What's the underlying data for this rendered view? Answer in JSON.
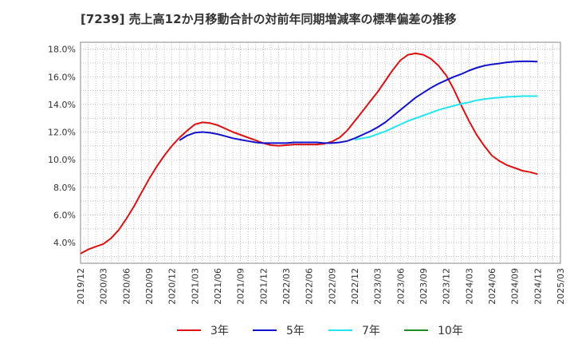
{
  "chart_data": {
    "type": "line",
    "title": "[7239]  売上高12か月移動合計の対前年同期増減率の標準偏差の推移",
    "xlabel": "",
    "ylabel": "",
    "x_ticks": [
      "2019/12",
      "2020/03",
      "2020/06",
      "2020/09",
      "2020/12",
      "2021/03",
      "2021/06",
      "2021/09",
      "2021/12",
      "2022/03",
      "2022/06",
      "2022/09",
      "2022/12",
      "2023/03",
      "2023/06",
      "2023/09",
      "2023/12",
      "2024/03",
      "2024/06",
      "2024/09",
      "2024/12",
      "2025/03"
    ],
    "y_ticks": [
      "4.0%",
      "6.0%",
      "8.0%",
      "10.0%",
      "12.0%",
      "14.0%",
      "16.0%",
      "18.0%"
    ],
    "ylim": [
      2.5,
      18.5
    ],
    "grid": true,
    "legend_position": "bottom",
    "series": [
      {
        "name": "3年",
        "color": "#dd1111",
        "x": [
          "2019/12",
          "2020/01",
          "2020/02",
          "2020/03",
          "2020/04",
          "2020/05",
          "2020/06",
          "2020/07",
          "2020/08",
          "2020/09",
          "2020/10",
          "2020/11",
          "2020/12",
          "2021/01",
          "2021/02",
          "2021/03",
          "2021/04",
          "2021/05",
          "2021/06",
          "2021/07",
          "2021/08",
          "2021/09",
          "2021/10",
          "2021/11",
          "2021/12",
          "2022/01",
          "2022/02",
          "2022/03",
          "2022/04",
          "2022/05",
          "2022/06",
          "2022/07",
          "2022/08",
          "2022/09",
          "2022/10",
          "2022/11",
          "2022/12",
          "2023/01",
          "2023/02",
          "2023/03",
          "2023/04",
          "2023/05",
          "2023/06",
          "2023/07",
          "2023/08",
          "2023/09",
          "2023/10",
          "2023/11",
          "2023/12",
          "2024/01",
          "2024/02",
          "2024/03",
          "2024/04",
          "2024/05",
          "2024/06",
          "2024/07",
          "2024/08",
          "2024/09",
          "2024/10",
          "2024/11",
          "2024/12"
        ],
        "values": [
          3.2,
          3.5,
          3.7,
          3.9,
          4.3,
          4.9,
          5.7,
          6.6,
          7.6,
          8.6,
          9.5,
          10.3,
          11.0,
          11.6,
          12.1,
          12.55,
          12.7,
          12.65,
          12.5,
          12.25,
          12.0,
          11.8,
          11.6,
          11.4,
          11.2,
          11.05,
          11.0,
          11.05,
          11.1,
          11.1,
          11.1,
          11.1,
          11.15,
          11.3,
          11.6,
          12.1,
          12.8,
          13.5,
          14.2,
          14.9,
          15.7,
          16.5,
          17.2,
          17.6,
          17.7,
          17.6,
          17.3,
          16.8,
          16.1,
          15.1,
          13.9,
          12.8,
          11.8,
          11.0,
          10.3,
          9.9,
          9.6,
          9.4,
          9.2,
          9.1,
          8.95
        ]
      },
      {
        "name": "5年",
        "color": "#1111cc",
        "x": [
          "2021/01",
          "2021/02",
          "2021/03",
          "2021/04",
          "2021/05",
          "2021/06",
          "2021/07",
          "2021/08",
          "2021/09",
          "2021/10",
          "2021/11",
          "2021/12",
          "2022/01",
          "2022/02",
          "2022/03",
          "2022/04",
          "2022/05",
          "2022/06",
          "2022/07",
          "2022/08",
          "2022/09",
          "2022/10",
          "2022/11",
          "2022/12",
          "2023/01",
          "2023/02",
          "2023/03",
          "2023/04",
          "2023/05",
          "2023/06",
          "2023/07",
          "2023/08",
          "2023/09",
          "2023/10",
          "2023/11",
          "2023/12",
          "2024/01",
          "2024/02",
          "2024/03",
          "2024/04",
          "2024/05",
          "2024/06",
          "2024/07",
          "2024/08",
          "2024/09",
          "2024/10",
          "2024/11",
          "2024/12"
        ],
        "values": [
          11.4,
          11.75,
          11.95,
          12.0,
          11.95,
          11.85,
          11.7,
          11.55,
          11.45,
          11.35,
          11.25,
          11.2,
          11.2,
          11.2,
          11.2,
          11.25,
          11.25,
          11.25,
          11.25,
          11.2,
          11.2,
          11.25,
          11.35,
          11.55,
          11.8,
          12.05,
          12.35,
          12.7,
          13.15,
          13.6,
          14.05,
          14.5,
          14.85,
          15.2,
          15.5,
          15.75,
          16.0,
          16.2,
          16.45,
          16.65,
          16.8,
          16.9,
          16.97,
          17.05,
          17.1,
          17.12,
          17.12,
          17.1
        ]
      },
      {
        "name": "7年",
        "color": "#22e5f0",
        "x": [
          "2022/12",
          "2023/01",
          "2023/02",
          "2023/03",
          "2023/04",
          "2023/05",
          "2023/06",
          "2023/07",
          "2023/08",
          "2023/09",
          "2023/10",
          "2023/11",
          "2023/12",
          "2024/01",
          "2024/02",
          "2024/03",
          "2024/04",
          "2024/05",
          "2024/06",
          "2024/07",
          "2024/08",
          "2024/09",
          "2024/10",
          "2024/11",
          "2024/12"
        ],
        "values": [
          11.45,
          11.55,
          11.65,
          11.85,
          12.05,
          12.3,
          12.55,
          12.8,
          13.0,
          13.2,
          13.4,
          13.6,
          13.75,
          13.9,
          14.05,
          14.15,
          14.3,
          14.38,
          14.45,
          14.5,
          14.55,
          14.57,
          14.6,
          14.6,
          14.6
        ]
      },
      {
        "name": "10年",
        "color": "#228b22",
        "x": [],
        "values": []
      }
    ]
  }
}
